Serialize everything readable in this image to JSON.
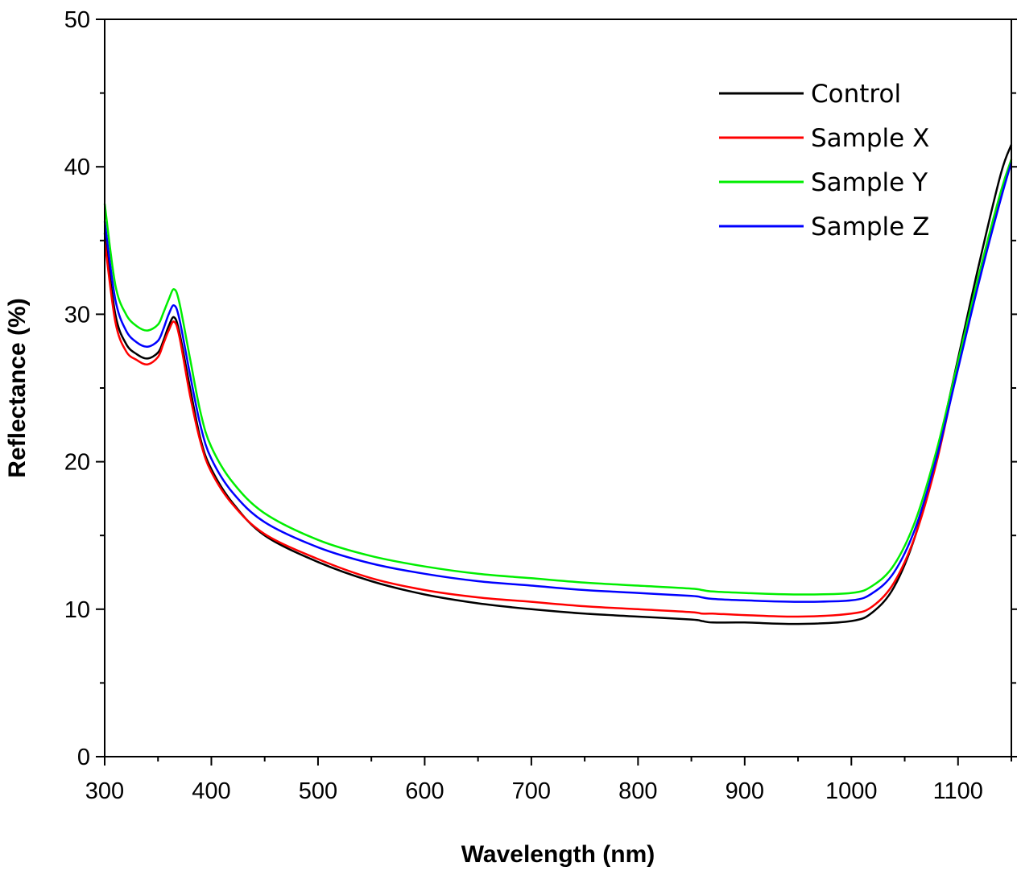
{
  "chart_data": {
    "type": "line",
    "xlabel": "Wavelength (nm)",
    "ylabel": "Reflectance (%)",
    "xlim": [
      300,
      1150
    ],
    "ylim": [
      0,
      50
    ],
    "x_ticks": [
      "300",
      "400",
      "500",
      "600",
      "700",
      "800",
      "900",
      "1000",
      "1100"
    ],
    "y_ticks": [
      "0",
      "10",
      "20",
      "30",
      "40",
      "50"
    ],
    "grid": false,
    "legend_position": "top-right",
    "x": [
      300,
      310,
      320,
      330,
      340,
      350,
      355,
      360,
      365,
      370,
      380,
      390,
      400,
      420,
      450,
      500,
      550,
      600,
      650,
      700,
      750,
      800,
      850,
      860,
      870,
      900,
      950,
      1000,
      1020,
      1040,
      1060,
      1080,
      1100,
      1120,
      1140,
      1150
    ],
    "series": [
      {
        "name": "Control",
        "color": "#000000",
        "values": [
          35.5,
          30.0,
          28.0,
          27.3,
          27.0,
          27.4,
          28.2,
          29.2,
          29.8,
          28.8,
          25.0,
          21.5,
          19.5,
          17.2,
          15.0,
          13.2,
          11.9,
          11.0,
          10.4,
          10.0,
          9.7,
          9.5,
          9.3,
          9.2,
          9.1,
          9.1,
          9.0,
          9.2,
          9.8,
          11.5,
          15.0,
          20.5,
          27.0,
          33.5,
          39.5,
          41.5
        ]
      },
      {
        "name": "Sample X",
        "color": "#ff0000",
        "values": [
          35.0,
          29.5,
          27.5,
          26.9,
          26.6,
          27.1,
          28.0,
          28.9,
          29.5,
          28.5,
          24.5,
          21.3,
          19.3,
          17.1,
          15.1,
          13.4,
          12.1,
          11.3,
          10.8,
          10.5,
          10.2,
          10.0,
          9.8,
          9.7,
          9.7,
          9.6,
          9.5,
          9.7,
          10.2,
          11.8,
          15.0,
          20.0,
          26.5,
          32.5,
          38.0,
          40.5
        ]
      },
      {
        "name": "Sample Y",
        "color": "#00ee00",
        "values": [
          37.5,
          32.0,
          30.0,
          29.2,
          28.9,
          29.3,
          30.1,
          31.0,
          31.7,
          30.8,
          27.0,
          23.3,
          21.0,
          18.6,
          16.5,
          14.7,
          13.6,
          12.9,
          12.4,
          12.1,
          11.8,
          11.6,
          11.4,
          11.3,
          11.2,
          11.1,
          11.0,
          11.1,
          11.6,
          13.0,
          16.0,
          20.8,
          26.8,
          32.8,
          38.3,
          40.5
        ]
      },
      {
        "name": "Sample Z",
        "color": "#0000ff",
        "values": [
          36.3,
          31.0,
          28.9,
          28.1,
          27.8,
          28.2,
          29.0,
          30.0,
          30.6,
          29.7,
          25.9,
          22.4,
          20.2,
          17.9,
          15.9,
          14.2,
          13.1,
          12.4,
          11.9,
          11.6,
          11.3,
          11.1,
          10.9,
          10.8,
          10.7,
          10.6,
          10.5,
          10.6,
          11.1,
          12.5,
          15.5,
          20.3,
          26.3,
          32.3,
          37.8,
          40.3
        ]
      }
    ]
  }
}
